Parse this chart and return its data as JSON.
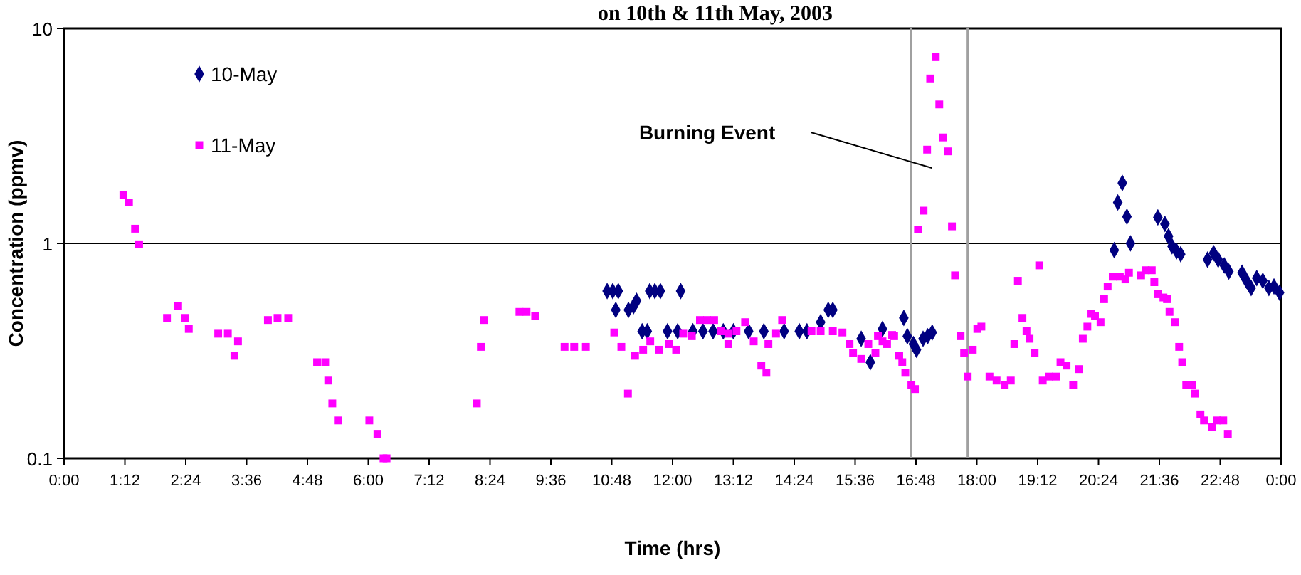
{
  "chart_data": {
    "type": "scatter",
    "title": "on 10th & 11th May, 2003",
    "xlabel": "Time (hrs)",
    "ylabel": "Concentration (ppmv)",
    "log": "y",
    "grid": "y",
    "legend": "top left",
    "xlim": [
      0,
      24
    ],
    "xticks": [
      {
        "value": 0,
        "label": "0:00"
      },
      {
        "value": 1.2,
        "label": "1:12"
      },
      {
        "value": 2.4,
        "label": "2:24"
      },
      {
        "value": 3.6,
        "label": "3:36"
      },
      {
        "value": 4.8,
        "label": "4:48"
      },
      {
        "value": 6,
        "label": "6:00"
      },
      {
        "value": 7.2,
        "label": "7:12"
      },
      {
        "value": 8.4,
        "label": "8:24"
      },
      {
        "value": 9.6,
        "label": "9:36"
      },
      {
        "value": 10.8,
        "label": "10:48"
      },
      {
        "value": 12,
        "label": "12:00"
      },
      {
        "value": 13.2,
        "label": "13:12"
      },
      {
        "value": 14.4,
        "label": "14:24"
      },
      {
        "value": 15.6,
        "label": "15:36"
      },
      {
        "value": 16.8,
        "label": "16:48"
      },
      {
        "value": 18,
        "label": "18:00"
      },
      {
        "value": 19.2,
        "label": "19:12"
      },
      {
        "value": 20.4,
        "label": "20:24"
      },
      {
        "value": 21.6,
        "label": "21:36"
      },
      {
        "value": 22.8,
        "label": "22:48"
      },
      {
        "value": 24,
        "label": "0:00"
      }
    ],
    "ylim": [
      0.1,
      10
    ],
    "yticks": [
      0.1,
      1,
      10
    ],
    "ref_lines": [
      {
        "axis": "x",
        "value": 16.7,
        "label": null,
        "color": "#a0a0a0"
      },
      {
        "axis": "x",
        "value": 17.82,
        "label": null,
        "color": "#a0a0a0"
      }
    ],
    "annotations": [
      "Burning Event"
    ],
    "series": [
      {
        "name": "10-May",
        "color": "#000080",
        "marker": "diamond",
        "x": [
          10.71,
          10.82,
          10.93,
          11.55,
          11.65,
          11.76,
          12.16,
          10.88,
          11.13,
          11.23,
          11.29,
          11.4,
          11.5,
          11.9,
          12.1,
          12.4,
          12.6,
          12.8,
          13.0,
          13.2,
          13.5,
          13.8,
          14.2,
          14.5,
          14.65,
          14.92,
          15.07,
          15.16,
          15.72,
          15.9,
          16.14,
          16.56,
          16.63,
          16.75,
          16.81,
          16.94,
          17.03,
          17.12,
          20.71,
          20.78,
          20.87,
          20.96,
          21.03,
          21.57,
          21.71,
          21.78,
          21.85,
          21.94,
          22.02,
          22.55,
          22.67,
          22.76,
          22.88,
          22.97,
          23.23,
          23.32,
          23.41,
          23.52,
          23.64,
          23.76,
          23.86,
          23.97
        ],
        "values": [
          0.6,
          0.6,
          0.6,
          0.6,
          0.6,
          0.6,
          0.6,
          0.49,
          0.49,
          0.51,
          0.54,
          0.39,
          0.39,
          0.39,
          0.39,
          0.39,
          0.39,
          0.39,
          0.39,
          0.39,
          0.39,
          0.39,
          0.39,
          0.39,
          0.39,
          0.43,
          0.49,
          0.49,
          0.36,
          0.28,
          0.4,
          0.45,
          0.37,
          0.34,
          0.32,
          0.36,
          0.37,
          0.385,
          0.93,
          1.55,
          1.91,
          1.33,
          1.0,
          1.32,
          1.23,
          1.08,
          0.97,
          0.92,
          0.89,
          0.84,
          0.9,
          0.84,
          0.79,
          0.74,
          0.73,
          0.67,
          0.62,
          0.69,
          0.67,
          0.62,
          0.63,
          0.59
        ]
      },
      {
        "name": "11-May",
        "color": "#ff00ff",
        "marker": "square",
        "x": [
          1.17,
          1.28,
          1.4,
          1.48,
          2.03,
          2.25,
          2.39,
          2.46,
          3.04,
          3.23,
          3.43,
          3.36,
          4.02,
          4.21,
          4.42,
          4.99,
          5.15,
          5.21,
          5.29,
          5.4,
          6.02,
          6.18,
          6.3,
          6.36,
          8.14,
          8.22,
          8.28,
          8.98,
          9.12,
          9.29,
          9.87,
          10.06,
          10.29,
          10.85,
          10.99,
          11.26,
          11.12,
          11.42,
          11.56,
          11.74,
          11.93,
          12.07,
          12.21,
          12.38,
          12.54,
          12.68,
          12.82,
          12.96,
          13.1,
          13.1,
          13.26,
          13.43,
          13.6,
          13.75,
          13.85,
          13.89,
          14.04,
          14.16,
          14.74,
          14.92,
          15.16,
          15.35,
          15.49,
          15.56,
          15.72,
          15.86,
          16.0,
          16.05,
          16.14,
          16.23,
          16.33,
          16.37,
          16.47,
          16.53,
          16.59,
          16.71,
          16.78,
          16.84,
          16.95,
          17.02,
          17.08,
          17.19,
          17.26,
          17.33,
          17.43,
          17.51,
          17.57,
          17.68,
          17.75,
          17.82,
          17.92,
          18.01,
          18.09,
          18.25,
          18.39,
          18.55,
          18.67,
          18.74,
          18.81,
          18.9,
          18.98,
          19.04,
          19.14,
          19.23,
          19.3,
          19.42,
          19.56,
          19.65,
          19.77,
          19.9,
          20.02,
          20.09,
          20.18,
          20.26,
          20.33,
          20.44,
          20.51,
          20.58,
          20.68,
          20.82,
          20.93,
          21.0,
          21.24,
          21.33,
          21.45,
          21.5,
          21.57,
          21.68,
          21.75,
          21.8,
          21.91,
          21.99,
          22.05,
          22.13,
          22.24,
          22.3,
          22.41,
          22.48,
          22.64,
          22.74,
          22.86,
          22.95
        ],
        "values": [
          1.68,
          1.55,
          1.17,
          0.99,
          0.45,
          0.51,
          0.45,
          0.4,
          0.38,
          0.38,
          0.35,
          0.3,
          0.44,
          0.45,
          0.45,
          0.28,
          0.28,
          0.23,
          0.18,
          0.15,
          0.15,
          0.13,
          0.1,
          0.1,
          0.18,
          0.33,
          0.44,
          0.48,
          0.48,
          0.46,
          0.33,
          0.33,
          0.33,
          0.385,
          0.33,
          0.3,
          0.2,
          0.32,
          0.35,
          0.32,
          0.34,
          0.32,
          0.38,
          0.37,
          0.44,
          0.44,
          0.44,
          0.39,
          0.38,
          0.34,
          0.39,
          0.43,
          0.35,
          0.27,
          0.25,
          0.34,
          0.38,
          0.44,
          0.39,
          0.39,
          0.39,
          0.385,
          0.34,
          0.31,
          0.29,
          0.34,
          0.31,
          0.37,
          0.35,
          0.34,
          0.375,
          0.37,
          0.3,
          0.28,
          0.25,
          0.22,
          0.21,
          1.16,
          1.42,
          2.73,
          5.85,
          7.35,
          4.43,
          3.11,
          2.68,
          1.2,
          0.71,
          0.37,
          0.31,
          0.24,
          0.32,
          0.4,
          0.41,
          0.24,
          0.23,
          0.22,
          0.23,
          0.34,
          0.67,
          0.45,
          0.39,
          0.36,
          0.31,
          0.79,
          0.23,
          0.24,
          0.24,
          0.28,
          0.27,
          0.22,
          0.26,
          0.36,
          0.41,
          0.47,
          0.46,
          0.43,
          0.55,
          0.63,
          0.7,
          0.7,
          0.68,
          0.73,
          0.71,
          0.75,
          0.75,
          0.66,
          0.58,
          0.56,
          0.55,
          0.48,
          0.43,
          0.33,
          0.28,
          0.22,
          0.22,
          0.2,
          0.16,
          0.15,
          0.14,
          0.15,
          0.15,
          0.13
        ]
      }
    ]
  }
}
